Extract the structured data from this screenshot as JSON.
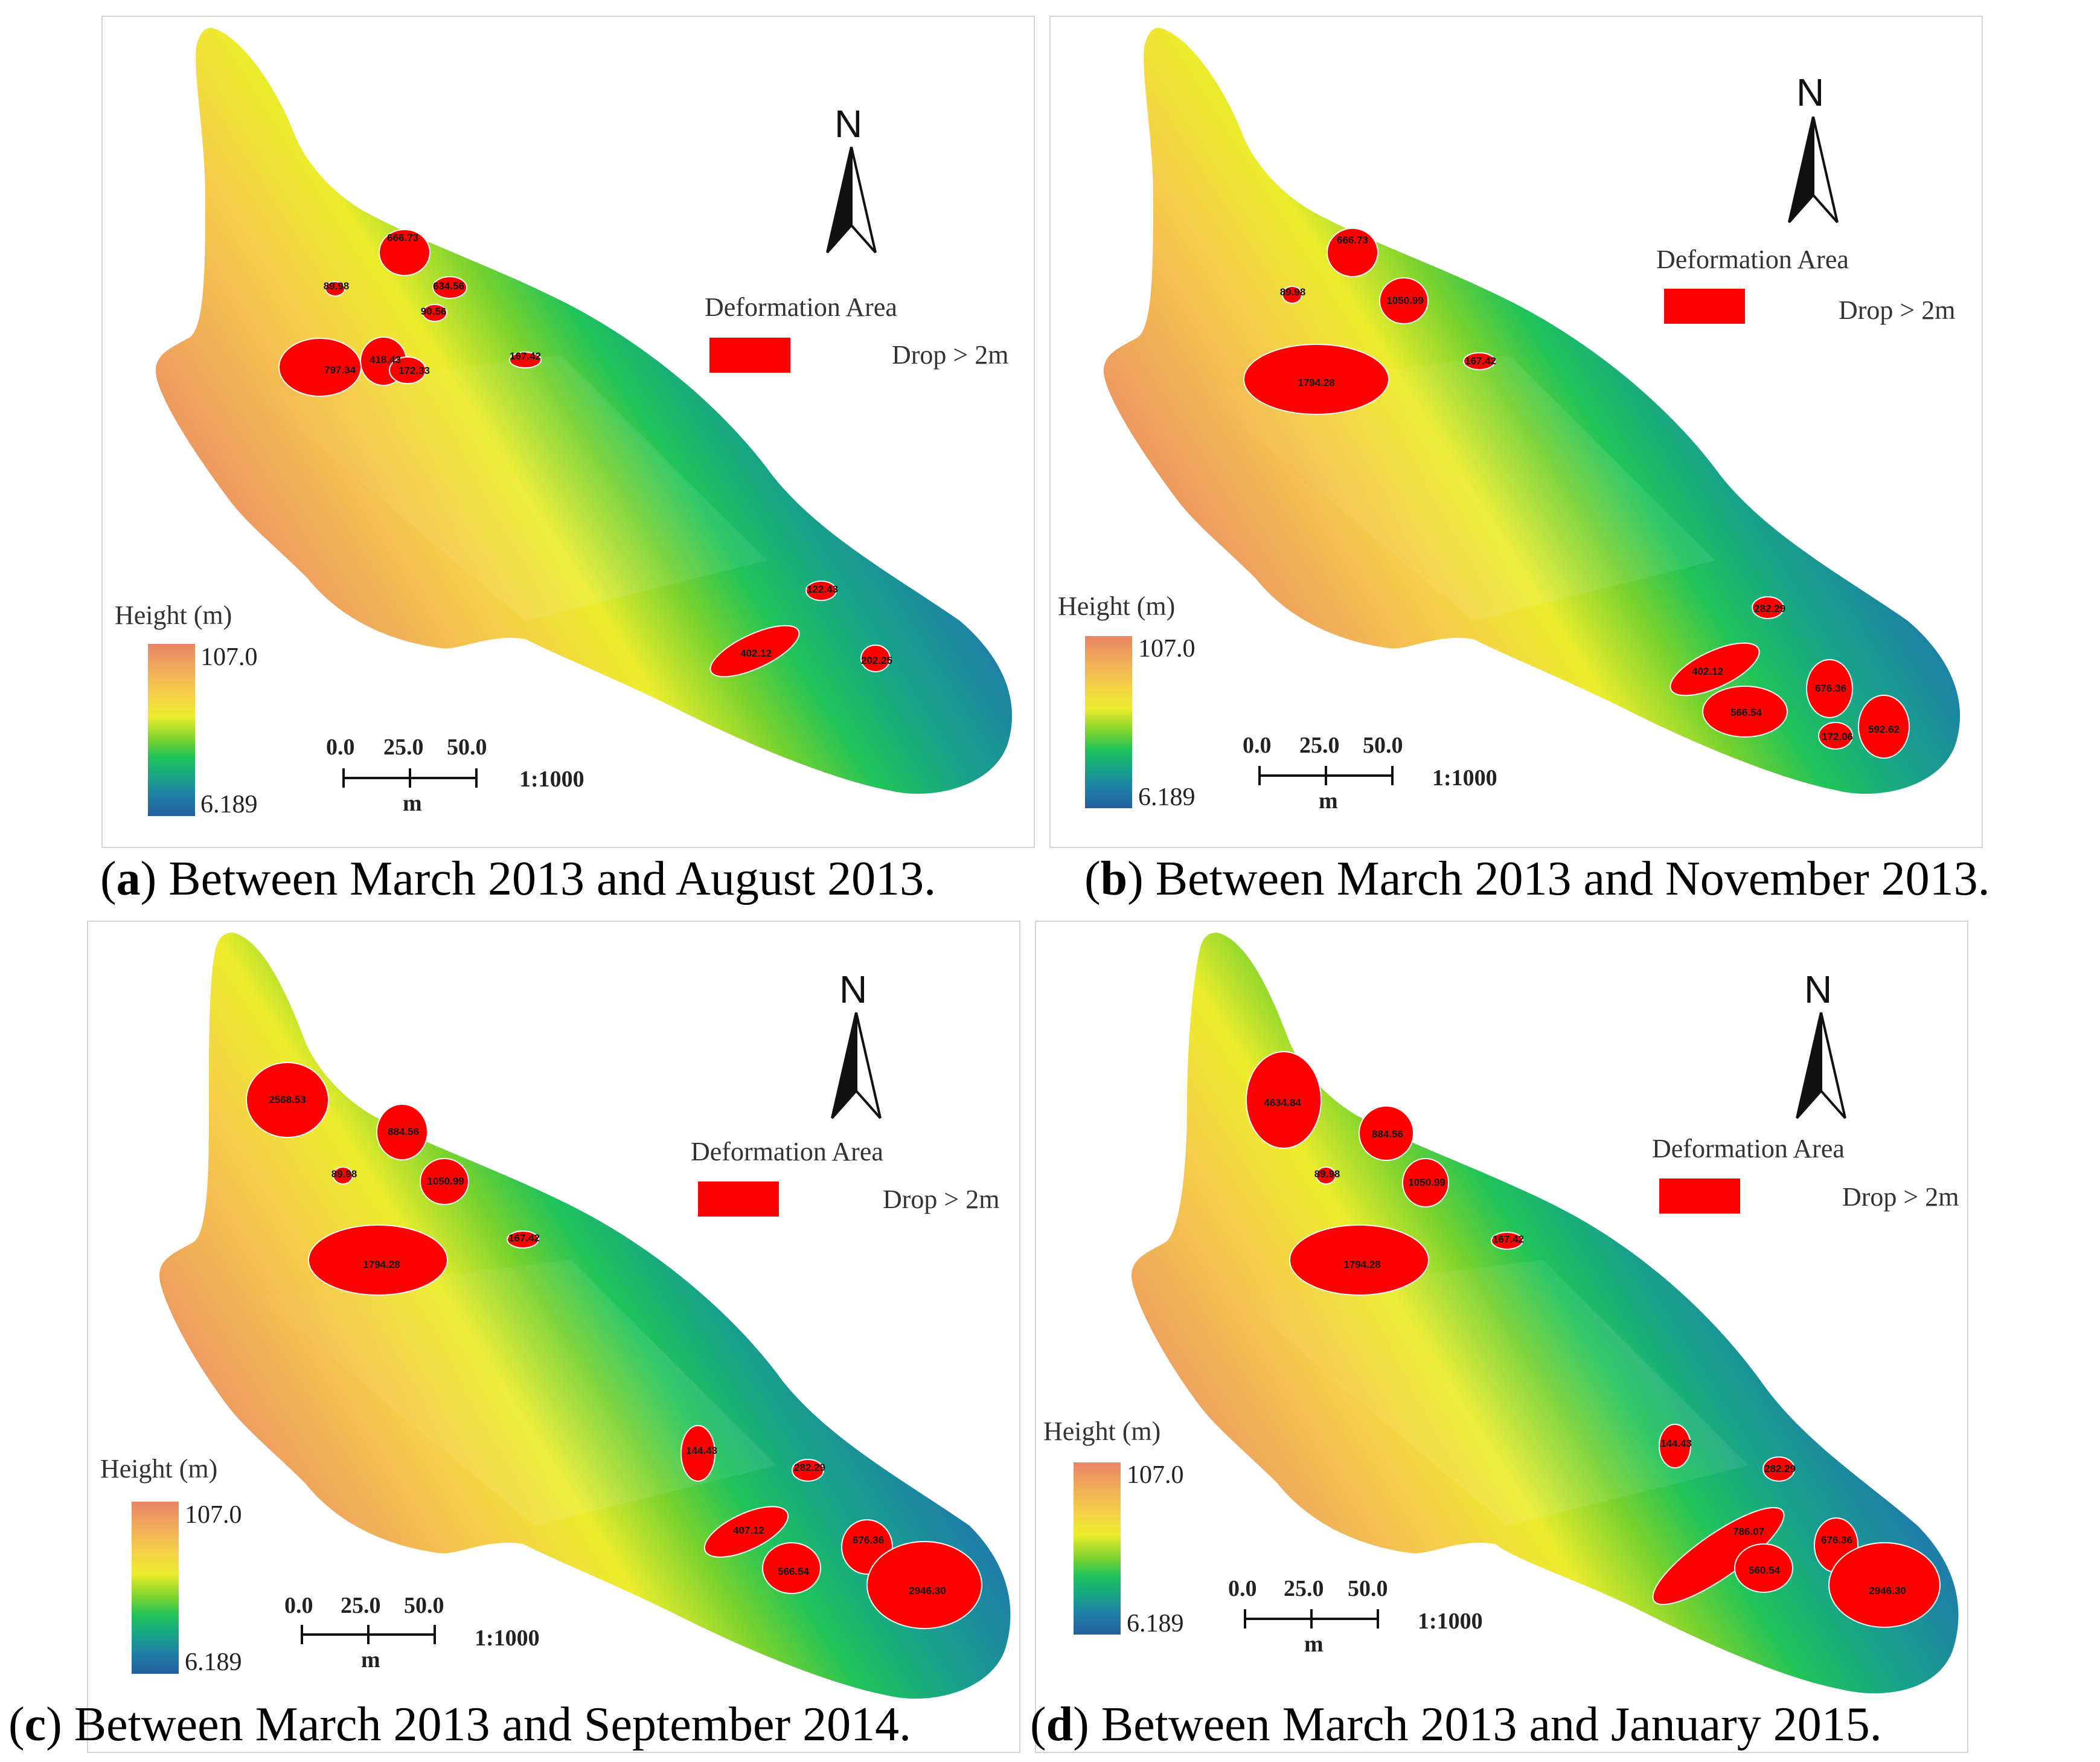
{
  "legend": {
    "deformation_title": "Deformation Area",
    "drop_label": "Drop > 2m",
    "height_title": "Height (m)",
    "height_max": "107.0",
    "height_min": "6.189",
    "scale_0": "0.0",
    "scale_25": "25.0",
    "scale_50": "50.0",
    "scale_unit": "m",
    "scale_ratio": "1:1000",
    "north_label": "N",
    "deformation_color": "#ff0000"
  },
  "panels": [
    {
      "letter": "a",
      "caption": " Between March 2013 and August 2013.",
      "areas": [
        "666.73",
        "89.98",
        "634.56",
        "90.56",
        "418.43",
        "797.34",
        "172.33",
        "167.42",
        "122.43",
        "402.12",
        "202.25"
      ]
    },
    {
      "letter": "b",
      "caption": " Between March 2013 and November 2013.",
      "areas": [
        "666.73",
        "89.98",
        "1050.99",
        "167.42",
        "1794.28",
        "282.29",
        "402.12",
        "676.36",
        "566.54",
        "592.62",
        "172.06"
      ]
    },
    {
      "letter": "c",
      "caption": " Between March 2013 and September 2014.",
      "areas": [
        "2568.53",
        "884.56",
        "89.98",
        "1050.99",
        "167.42",
        "1794.28",
        "144.43",
        "282.29",
        "407.12",
        "676.36",
        "566.54",
        "2946.30"
      ]
    },
    {
      "letter": "d",
      "caption": " Between March 2013 and January 2015.",
      "areas": [
        "4634.84",
        "884.56",
        "89.98",
        "1050.99",
        "167.42",
        "1794.28",
        "144.43",
        "282.29",
        "786.07",
        "676.36",
        "560.54",
        "2946.30"
      ]
    }
  ]
}
